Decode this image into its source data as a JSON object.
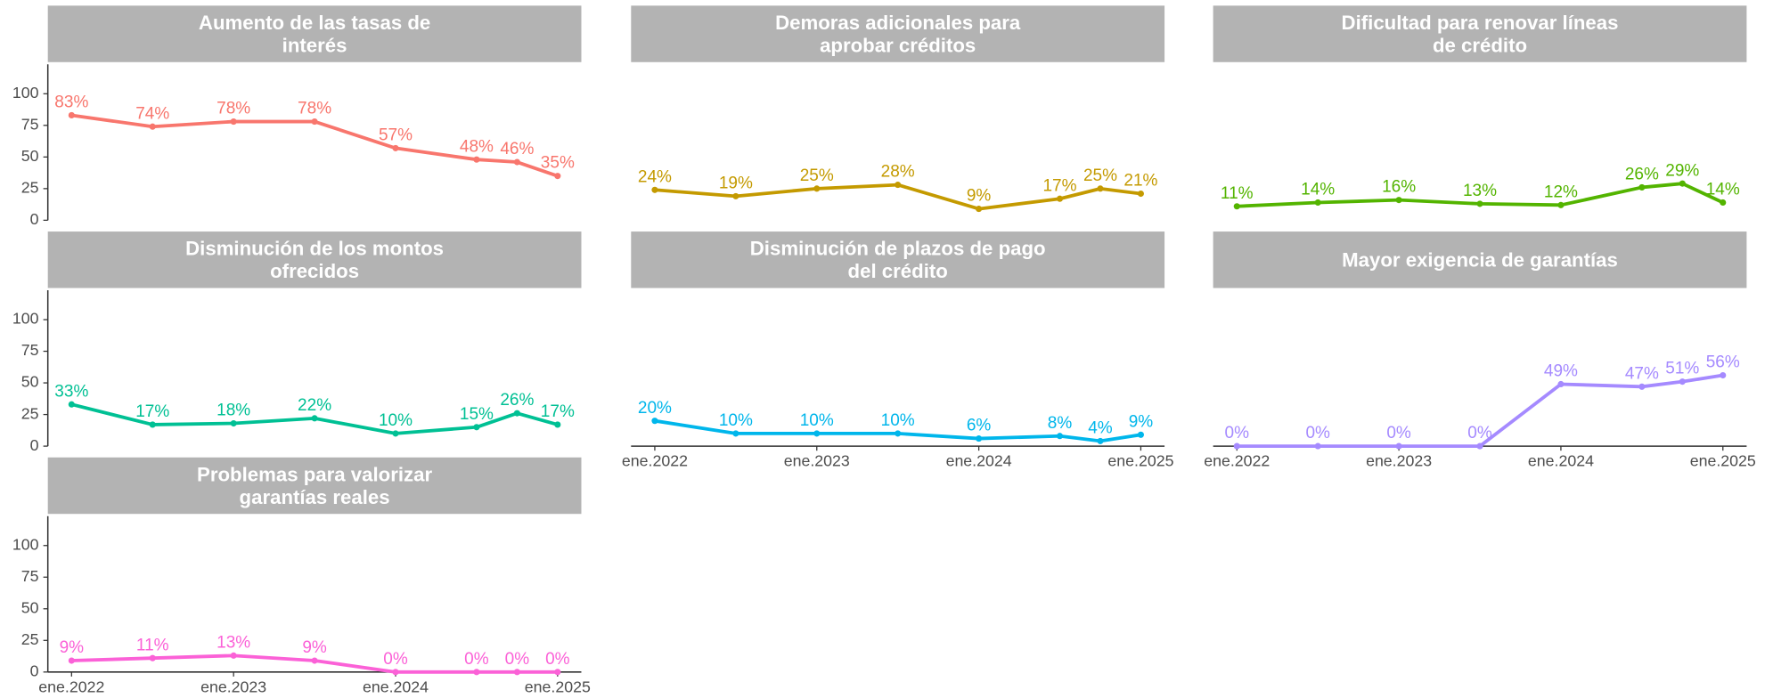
{
  "chart_data": {
    "type": "line",
    "x": [
      "2022-01",
      "2022-07",
      "2023-01",
      "2023-07",
      "2024-01",
      "2024-07",
      "2024-10",
      "2025-01"
    ],
    "xticks": [
      {
        "value": "2022-01",
        "label": "ene.2022"
      },
      {
        "value": "2023-01",
        "label": "ene.2023"
      },
      {
        "value": "2024-01",
        "label": "ene.2024"
      },
      {
        "value": "2025-01",
        "label": "ene.2025"
      }
    ],
    "ylim": [
      0,
      125
    ],
    "yticks": [
      0,
      25,
      50,
      75,
      100
    ],
    "series": [
      {
        "name": "Aumento de las tasas de\ninterés",
        "color": "#f8766d",
        "values": [
          83,
          74,
          78,
          78,
          57,
          48,
          46,
          35
        ],
        "value_labels": [
          "83%",
          "74%",
          "78%",
          "78%",
          "57%",
          "48%",
          "46%",
          "35%"
        ]
      },
      {
        "name": "Demoras adicionales para\naprobar créditos",
        "color": "#c49a00",
        "values": [
          24,
          19,
          25,
          28,
          9,
          17,
          25,
          21
        ],
        "value_labels": [
          "24%",
          "19%",
          "25%",
          "28%",
          "9%",
          "17%",
          "25%",
          "21%"
        ]
      },
      {
        "name": "Dificultad para renovar líneas\nde crédito",
        "color": "#53b400",
        "values": [
          11,
          14,
          16,
          13,
          12,
          26,
          29,
          14
        ],
        "value_labels": [
          "11%",
          "14%",
          "16%",
          "13%",
          "12%",
          "26%",
          "29%",
          "14%"
        ]
      },
      {
        "name": "Disminución de los montos\nofrecidos",
        "color": "#00c094",
        "values": [
          33,
          17,
          18,
          22,
          10,
          15,
          26,
          17
        ],
        "value_labels": [
          "33%",
          "17%",
          "18%",
          "22%",
          "10%",
          "15%",
          "26%",
          "17%"
        ]
      },
      {
        "name": "Disminución de plazos de pago\ndel crédito",
        "color": "#00b6eb",
        "values": [
          20,
          10,
          10,
          10,
          6,
          8,
          4,
          9
        ],
        "value_labels": [
          "20%",
          "10%",
          "10%",
          "10%",
          "6%",
          "8%",
          "4%",
          "9%"
        ]
      },
      {
        "name": "Mayor exigencia de garantías",
        "color": "#a58aff",
        "values": [
          0,
          0,
          0,
          0,
          49,
          47,
          51,
          56
        ],
        "value_labels": [
          "0%",
          "0%",
          "0%",
          "0%",
          "49%",
          "47%",
          "51%",
          "56%"
        ]
      },
      {
        "name": "Problemas para valorizar\ngarantías reales",
        "color": "#fb61d7",
        "values": [
          9,
          11,
          13,
          9,
          0,
          0,
          0,
          0
        ],
        "value_labels": [
          "9%",
          "11%",
          "13%",
          "9%",
          "0%",
          "0%",
          "0%",
          "0%"
        ]
      }
    ]
  }
}
